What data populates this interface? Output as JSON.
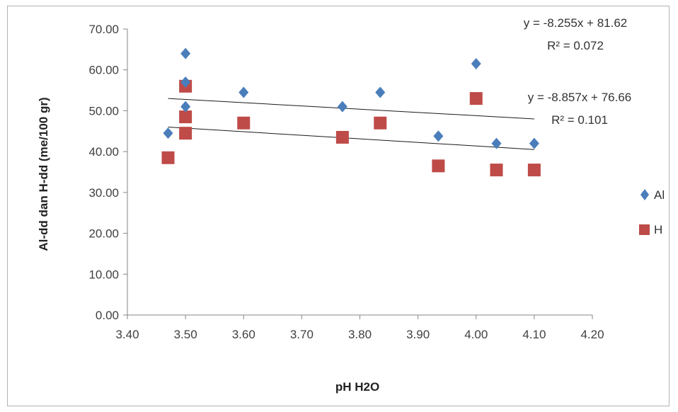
{
  "chart_data": {
    "type": "scatter",
    "xlabel": "pH H2O",
    "ylabel": "Al-dd dan H-dd (me/100 gr)",
    "xlim": [
      3.4,
      4.2
    ],
    "ylim": [
      0,
      70
    ],
    "x_ticks": [
      "3.40",
      "3.50",
      "3.60",
      "3.70",
      "3.80",
      "3.90",
      "4.00",
      "4.10",
      "4.20"
    ],
    "y_ticks": [
      "0.00",
      "10.00",
      "20.00",
      "30.00",
      "40.00",
      "50.00",
      "60.00",
      "70.00"
    ],
    "grid": false,
    "legend_position": "right",
    "series": [
      {
        "name": "Al",
        "marker": "diamond",
        "color": "#4a7ebb",
        "points": [
          {
            "x": 3.47,
            "y": 44.5
          },
          {
            "x": 3.5,
            "y": 64.0
          },
          {
            "x": 3.5,
            "y": 57.0
          },
          {
            "x": 3.5,
            "y": 51.0
          },
          {
            "x": 3.6,
            "y": 54.5
          },
          {
            "x": 3.77,
            "y": 51.0
          },
          {
            "x": 3.835,
            "y": 54.5
          },
          {
            "x": 3.935,
            "y": 43.8
          },
          {
            "x": 4.0,
            "y": 61.5
          },
          {
            "x": 4.035,
            "y": 42.0
          },
          {
            "x": 4.1,
            "y": 42.0
          }
        ],
        "trendline": {
          "x_range": [
            3.47,
            4.1
          ],
          "y_range": [
            53.0,
            48.0
          ]
        },
        "equation": "y = -8.255x + 81.62",
        "r2": "R² = 0.072"
      },
      {
        "name": "H",
        "marker": "square",
        "color": "#be4b48",
        "points": [
          {
            "x": 3.47,
            "y": 38.5
          },
          {
            "x": 3.5,
            "y": 56.0
          },
          {
            "x": 3.5,
            "y": 48.5
          },
          {
            "x": 3.5,
            "y": 44.5
          },
          {
            "x": 3.6,
            "y": 47.0
          },
          {
            "x": 3.77,
            "y": 43.5
          },
          {
            "x": 3.835,
            "y": 47.0
          },
          {
            "x": 3.935,
            "y": 36.5
          },
          {
            "x": 4.0,
            "y": 53.0
          },
          {
            "x": 4.035,
            "y": 35.5
          },
          {
            "x": 4.1,
            "y": 35.5
          }
        ],
        "trendline": {
          "x_range": [
            3.47,
            4.1
          ],
          "y_range": [
            46.0,
            40.5
          ]
        },
        "equation": "y = -8.857x + 76.66",
        "r2": "R² = 0.101"
      }
    ]
  }
}
